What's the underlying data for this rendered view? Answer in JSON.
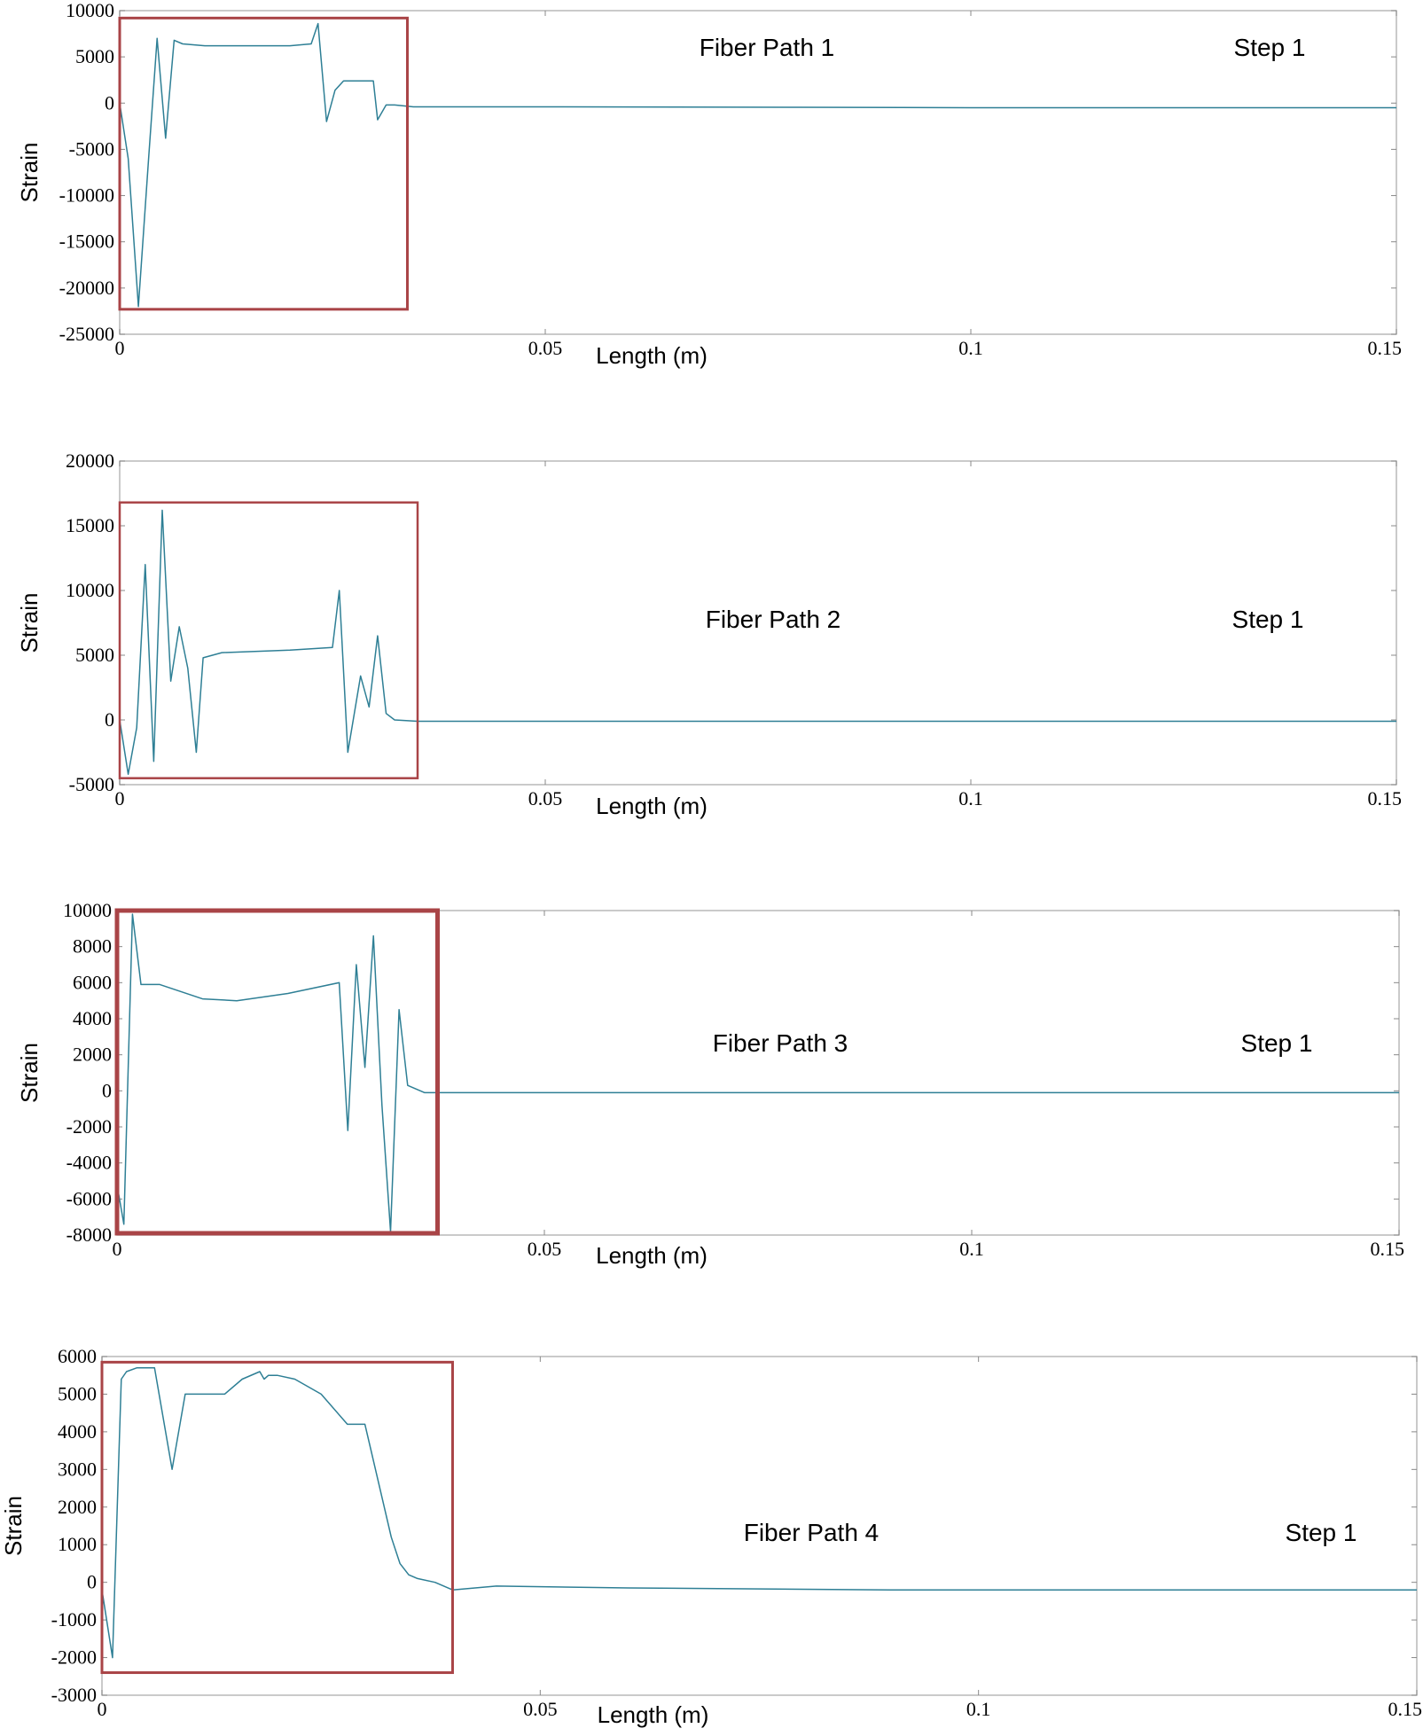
{
  "chart_data": [
    {
      "type": "line",
      "title": "",
      "xlabel": "Length (m)",
      "ylabel": "Strain",
      "xlim": [
        0,
        0.15
      ],
      "ylim": [
        -25000,
        10000
      ],
      "x_ticks": [
        "0",
        "0.05",
        "0.1",
        "0.15"
      ],
      "y_ticks": [
        "10000",
        "5000",
        "0",
        "-5000",
        "-10000",
        "-15000",
        "-20000",
        "-25000"
      ],
      "annotations": [
        "Fiber Path 1",
        "Step 1"
      ],
      "highlight_box": {
        "x": [
          0,
          0.0338
        ],
        "y": [
          -22300,
          9200
        ]
      },
      "color": "#2e7f95",
      "highlight_color": "#a94447",
      "series": [
        {
          "x": [
            0,
            0.001,
            0.0022,
            0.0034,
            0.0044,
            0.0054,
            0.0064,
            0.0074,
            0.01,
            0.015,
            0.02,
            0.0225,
            0.0233,
            0.0243,
            0.0253,
            0.0263,
            0.0298,
            0.0303,
            0.0313,
            0.0323,
            0.0345,
            0.05,
            0.08,
            0.1,
            0.12,
            0.15
          ],
          "y": [
            0,
            -6000,
            -22000,
            -6000,
            7000,
            -3800,
            6800,
            6400,
            6200,
            6200,
            6200,
            6400,
            8600,
            -2000,
            1400,
            2400,
            2400,
            -1800,
            -200,
            -200,
            -400,
            -400,
            -450,
            -500,
            -500,
            -500
          ]
        }
      ]
    },
    {
      "type": "line",
      "title": "",
      "xlabel": "Length (m)",
      "ylabel": "Strain",
      "xlim": [
        0,
        0.15
      ],
      "ylim": [
        -5000,
        20000
      ],
      "x_ticks": [
        "0",
        "0.05",
        "0.1",
        "0.15"
      ],
      "y_ticks": [
        "20000",
        "15000",
        "10000",
        "5000",
        "0",
        "-5000"
      ],
      "annotations": [
        "Fiber Path 2",
        "Step 1"
      ],
      "highlight_box": {
        "x": [
          0,
          0.035
        ],
        "y": [
          -4500,
          16800
        ]
      },
      "color": "#2e7f95",
      "highlight_color": "#a94447",
      "series": [
        {
          "x": [
            0,
            0.001,
            0.002,
            0.003,
            0.004,
            0.005,
            0.006,
            0.007,
            0.008,
            0.009,
            0.0098,
            0.012,
            0.02,
            0.025,
            0.0258,
            0.0268,
            0.0283,
            0.0293,
            0.0303,
            0.0313,
            0.0323,
            0.035,
            0.05,
            0.08,
            0.12,
            0.15
          ],
          "y": [
            0,
            -4200,
            -600,
            12000,
            -3200,
            16200,
            3000,
            7200,
            4000,
            -2500,
            4800,
            5200,
            5400,
            5600,
            10000,
            -2500,
            3400,
            1000,
            6500,
            500,
            0,
            -100,
            -100,
            -100,
            -100,
            -100
          ]
        }
      ]
    },
    {
      "type": "line",
      "title": "",
      "xlabel": "Length (m)",
      "ylabel": "Strain",
      "xlim": [
        0,
        0.15
      ],
      "ylim": [
        -8000,
        10000
      ],
      "x_ticks": [
        "0",
        "0.05",
        "0.1",
        "0.15"
      ],
      "y_ticks": [
        "10000",
        "8000",
        "6000",
        "4000",
        "2000",
        "0",
        "-2000",
        "-4000",
        "-6000",
        "-8000"
      ],
      "annotations": [
        "Fiber Path 3",
        "Step 1"
      ],
      "highlight_box": {
        "x": [
          0,
          0.0375
        ],
        "y": [
          -7900,
          10000
        ]
      },
      "color": "#2e7f95",
      "highlight_color": "#a94447",
      "series": [
        {
          "x": [
            0,
            0.0008,
            0.0018,
            0.0028,
            0.005,
            0.01,
            0.014,
            0.02,
            0.026,
            0.027,
            0.028,
            0.029,
            0.03,
            0.031,
            0.032,
            0.033,
            0.034,
            0.036,
            0.05,
            0.08,
            0.12,
            0.15
          ],
          "y": [
            -5200,
            -7400,
            9800,
            5900,
            5900,
            5100,
            5000,
            5400,
            6000,
            -2200,
            7000,
            1300,
            8600,
            -800,
            -7800,
            4500,
            300,
            -100,
            -100,
            -100,
            -100,
            -100
          ]
        }
      ]
    },
    {
      "type": "line",
      "title": "",
      "xlabel": "Length (m)",
      "ylabel": "Strain",
      "xlim": [
        0,
        0.15
      ],
      "ylim": [
        -3000,
        6000
      ],
      "x_ticks": [
        "0",
        "0.05",
        "0.1",
        "0.15"
      ],
      "y_ticks": [
        "6000",
        "5000",
        "4000",
        "3000",
        "2000",
        "1000",
        "0",
        "-1000",
        "-2000",
        "-3000"
      ],
      "annotations": [
        "Fiber Path 4",
        "Step 1"
      ],
      "highlight_box": {
        "x": [
          0,
          0.04
        ],
        "y": [
          -2400,
          5850
        ]
      },
      "color": "#2e7f95",
      "highlight_color": "#a94447",
      "series": [
        {
          "x": [
            0,
            0.0012,
            0.0022,
            0.0028,
            0.004,
            0.006,
            0.008,
            0.0095,
            0.0105,
            0.014,
            0.016,
            0.018,
            0.0185,
            0.019,
            0.0195,
            0.02,
            0.022,
            0.025,
            0.028,
            0.03,
            0.031,
            0.033,
            0.034,
            0.035,
            0.036,
            0.038,
            0.04,
            0.045,
            0.06,
            0.09,
            0.12,
            0.15
          ],
          "y": [
            -200,
            -2000,
            5400,
            5600,
            5700,
            5700,
            3000,
            5000,
            5000,
            5000,
            5400,
            5600,
            5400,
            5500,
            5500,
            5500,
            5400,
            5000,
            4200,
            4200,
            3200,
            1200,
            500,
            200,
            100,
            0,
            -200,
            -100,
            -150,
            -200,
            -200,
            -200
          ]
        }
      ]
    }
  ]
}
